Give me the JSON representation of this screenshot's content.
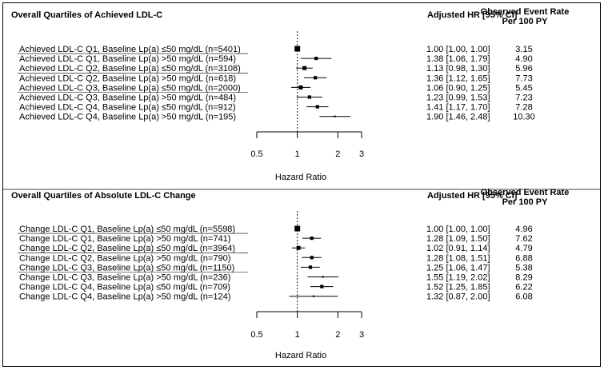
{
  "chart_data": [
    {
      "type": "forest",
      "title": "Overall Quartiles of Achieved LDL-C",
      "col_hr_header": "Adjusted HR [95% CI]",
      "col_rate_header": "Observed Event Rate Per 100 PY",
      "xlabel": "Hazard Ratio",
      "x_scale": "log",
      "xlim": [
        0.5,
        3
      ],
      "ticks": [
        "0.5",
        "1",
        "2",
        "3"
      ],
      "tick_values": [
        0.5,
        1,
        2,
        3
      ],
      "reference_line": 1,
      "rows": [
        {
          "label": "Achieved LDL-C Q1, Baseline Lp(a) ≤50 mg/dL (n=5401)",
          "hr": 1.0,
          "lo": 1.0,
          "hi": 1.0,
          "hr_text": "1.00 [1.00, 1.00]",
          "rate": "3.15",
          "underline": false
        },
        {
          "label": "Achieved LDL-C Q1, Baseline Lp(a) >50 mg/dL (n=594)",
          "hr": 1.38,
          "lo": 1.06,
          "hi": 1.79,
          "hr_text": "1.38 [1.06, 1.79]",
          "rate": "4.90",
          "underline": true
        },
        {
          "label": "Achieved LDL-C Q2, Baseline Lp(a) ≤50 mg/dL (n=3108)",
          "hr": 1.13,
          "lo": 0.98,
          "hi": 1.3,
          "hr_text": "1.13 [0.98, 1.30]",
          "rate": "5.96",
          "underline": false
        },
        {
          "label": "Achieved LDL-C Q2, Baseline Lp(a) >50 mg/dL (n=618)",
          "hr": 1.36,
          "lo": 1.12,
          "hi": 1.65,
          "hr_text": "1.36 [1.12, 1.65]",
          "rate": "7.73",
          "underline": true
        },
        {
          "label": "Achieved LDL-C Q3, Baseline Lp(a) ≤50 mg/dL (n=2000)",
          "hr": 1.06,
          "lo": 0.9,
          "hi": 1.25,
          "hr_text": "1.06 [0.90, 1.25]",
          "rate": "5.45",
          "underline": false
        },
        {
          "label": "Achieved LDL-C Q3, Baseline Lp(a) >50 mg/dL (n=484)",
          "hr": 1.23,
          "lo": 0.99,
          "hi": 1.53,
          "hr_text": "1.23 [0.99, 1.53]",
          "rate": "7.23",
          "underline": true
        },
        {
          "label": "Achieved LDL-C Q4, Baseline Lp(a) ≤50 mg/dL (n=912)",
          "hr": 1.41,
          "lo": 1.17,
          "hi": 1.7,
          "hr_text": "1.41 [1.17, 1.70]",
          "rate": "7.28",
          "underline": false
        },
        {
          "label": "Achieved LDL-C Q4, Baseline Lp(a) >50 mg/dL (n=195)",
          "hr": 1.9,
          "lo": 1.46,
          "hi": 2.48,
          "hr_text": "1.90 [1.46, 2.48]",
          "rate": "10.30",
          "underline": false
        }
      ]
    },
    {
      "type": "forest",
      "title": "Overall Quartiles of Absolute LDL-C Change",
      "col_hr_header": "Adjusted HR [95% CI]",
      "col_rate_header": "Observed Event Rate Per 100 PY",
      "xlabel": "Hazard Ratio",
      "x_scale": "log",
      "xlim": [
        0.5,
        3
      ],
      "ticks": [
        "0.5",
        "1",
        "2",
        "3"
      ],
      "tick_values": [
        0.5,
        1,
        2,
        3
      ],
      "reference_line": 1,
      "rows": [
        {
          "label": "Change LDL-C Q1, Baseline Lp(a) ≤50 mg/dL (n=5598)",
          "hr": 1.0,
          "lo": 1.0,
          "hi": 1.0,
          "hr_text": "1.00 [1.00, 1.00]",
          "rate": "4.96",
          "underline": false
        },
        {
          "label": "Change LDL-C Q1, Baseline Lp(a) >50 mg/dL (n=741)",
          "hr": 1.28,
          "lo": 1.09,
          "hi": 1.5,
          "hr_text": "1.28 [1.09, 1.50]",
          "rate": "7.62",
          "underline": true
        },
        {
          "label": "Change LDL-C Q2, Baseline Lp(a) ≤50 mg/dL (n=3964)",
          "hr": 1.02,
          "lo": 0.91,
          "hi": 1.14,
          "hr_text": "1.02 [0.91, 1.14]",
          "rate": "4.79",
          "underline": false
        },
        {
          "label": "Change LDL-C Q2, Baseline Lp(a) >50 mg/dL (n=790)",
          "hr": 1.28,
          "lo": 1.08,
          "hi": 1.51,
          "hr_text": "1.28 [1.08, 1.51]",
          "rate": "6.88",
          "underline": true
        },
        {
          "label": "Change LDL-C Q3, Baseline Lp(a) ≤50 mg/dL (n=1150)",
          "hr": 1.25,
          "lo": 1.06,
          "hi": 1.47,
          "hr_text": "1.25 [1.06, 1.47]",
          "rate": "5.38",
          "underline": false
        },
        {
          "label": "Change LDL-C Q3, Baseline Lp(a) >50 mg/dL (n=236)",
          "hr": 1.55,
          "lo": 1.19,
          "hi": 2.02,
          "hr_text": "1.55 [1.19, 2.02]",
          "rate": "8.29",
          "underline": true
        },
        {
          "label": "Change LDL-C Q4, Baseline Lp(a) ≤50 mg/dL (n=709)",
          "hr": 1.52,
          "lo": 1.25,
          "hi": 1.85,
          "hr_text": "1.52 [1.25, 1.85]",
          "rate": "6.22",
          "underline": false
        },
        {
          "label": "Change LDL-C Q4, Baseline Lp(a) >50 mg/dL (n=124)",
          "hr": 1.32,
          "lo": 0.87,
          "hi": 2.0,
          "hr_text": "1.32 [0.87, 2.00]",
          "rate": "6.08",
          "underline": false
        }
      ]
    }
  ]
}
